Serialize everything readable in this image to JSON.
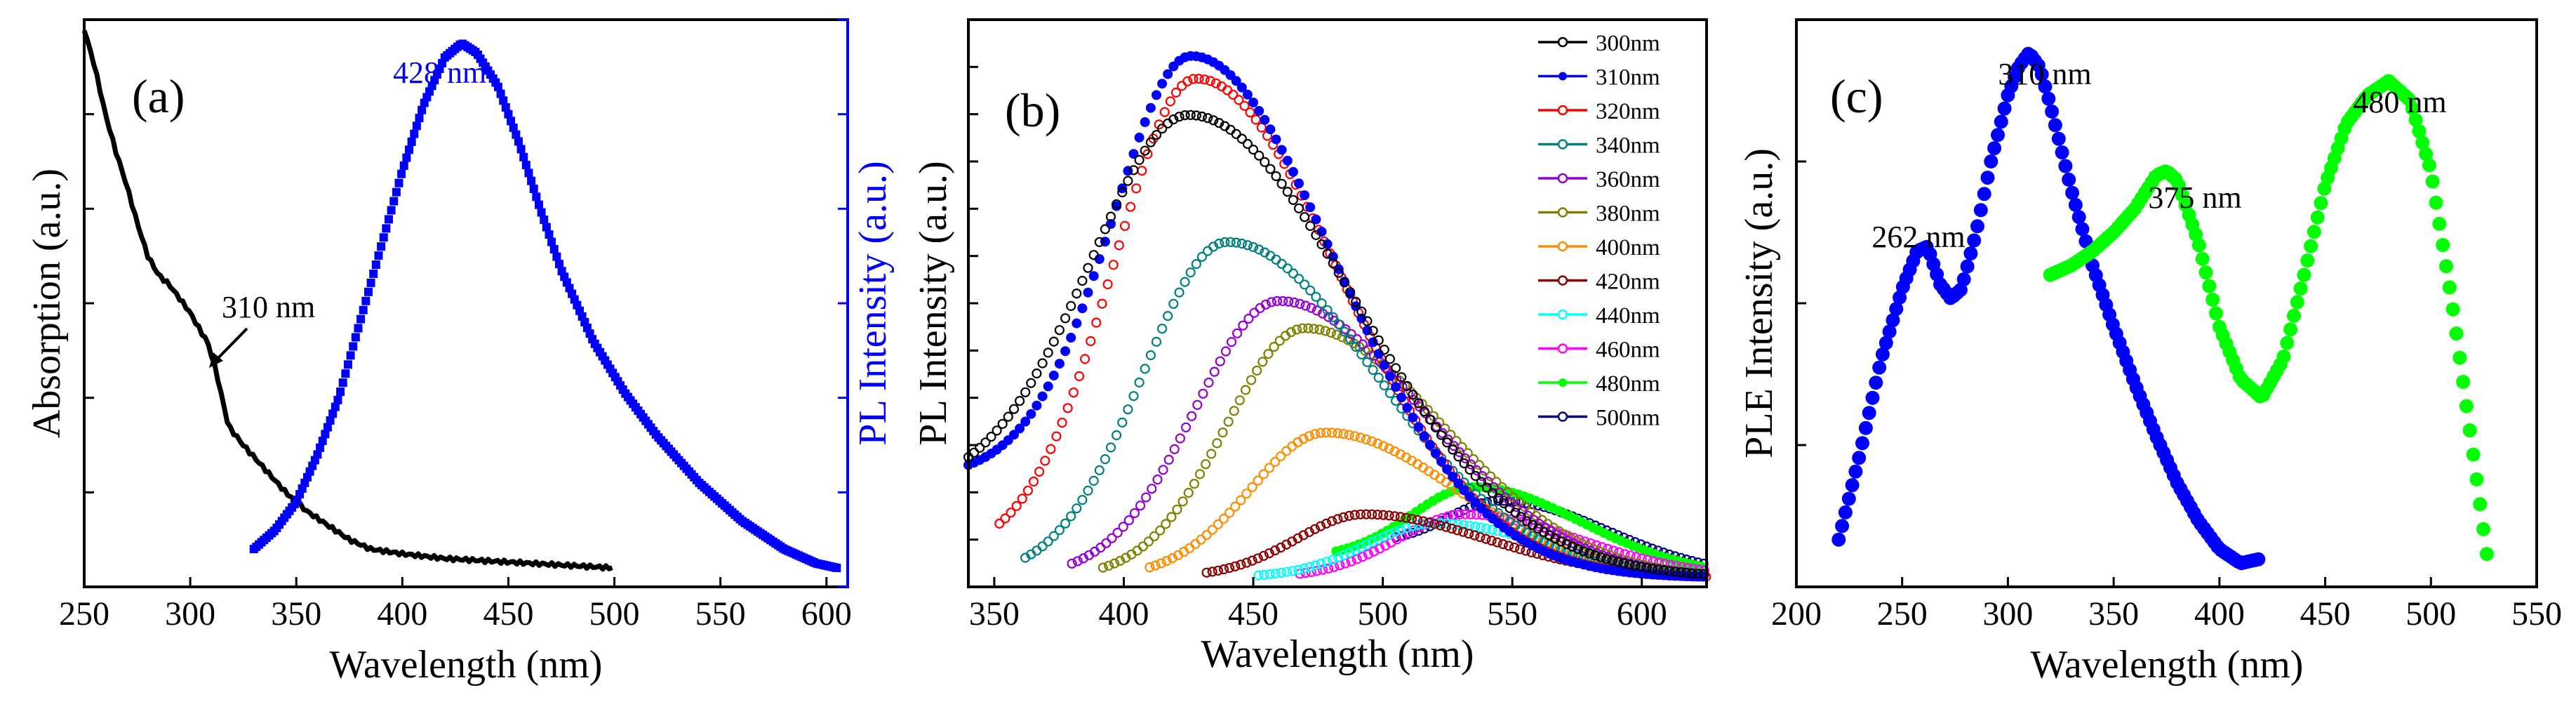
{
  "chart_data": [
    {
      "panel": "(a)",
      "type": "line",
      "xlabel": "Wavelength (nm)",
      "ylabel_left": "Absorption (a.u.)",
      "ylabel_right": "PL Intensity (a.u.)",
      "xlim": [
        250,
        610
      ],
      "xticks": [
        250,
        300,
        350,
        400,
        450,
        500,
        550,
        600
      ],
      "ylim": [
        0,
        1.2
      ],
      "colors": {
        "absorption": "#000000",
        "pl": "#0000ff",
        "right_axis": "#0000ff"
      },
      "annotations": [
        {
          "text": "310 nm",
          "x": 310,
          "series": "absorption"
        },
        {
          "text": "428 nm",
          "x": 428,
          "series": "pl"
        }
      ],
      "series": [
        {
          "name": "Absorption",
          "x": [
            250,
            255,
            260,
            265,
            270,
            275,
            280,
            285,
            290,
            295,
            300,
            305,
            308,
            312,
            315,
            318,
            325,
            335,
            345,
            355,
            365,
            375,
            385,
            400,
            420,
            440,
            460,
            480,
            500
          ],
          "y": [
            1.18,
            1.1,
            1.0,
            0.92,
            0.85,
            0.77,
            0.7,
            0.66,
            0.64,
            0.61,
            0.58,
            0.54,
            0.52,
            0.46,
            0.4,
            0.34,
            0.3,
            0.25,
            0.2,
            0.16,
            0.13,
            0.1,
            0.08,
            0.07,
            0.06,
            0.055,
            0.05,
            0.045,
            0.04
          ]
        },
        {
          "name": "PL",
          "x": [
            330,
            340,
            350,
            360,
            370,
            380,
            390,
            400,
            410,
            420,
            428,
            435,
            445,
            455,
            465,
            475,
            490,
            505,
            520,
            540,
            560,
            580,
            595,
            605
          ],
          "y": [
            0.08,
            0.12,
            0.18,
            0.28,
            0.4,
            0.56,
            0.72,
            0.88,
            1.02,
            1.12,
            1.15,
            1.13,
            1.06,
            0.94,
            0.8,
            0.67,
            0.52,
            0.41,
            0.32,
            0.22,
            0.14,
            0.08,
            0.05,
            0.04
          ]
        }
      ]
    },
    {
      "panel": "(b)",
      "type": "line",
      "xlabel": "Wavelength (nm)",
      "ylabel": "PL Intensity (a.u.)",
      "xlim": [
        340,
        625
      ],
      "xticks": [
        350,
        400,
        450,
        500,
        550,
        600
      ],
      "ylim": [
        0,
        1.25
      ],
      "legend_position": "top-right",
      "series": [
        {
          "name": "300nm",
          "color": "#000000",
          "peak_x": 425,
          "peak_y": 1.04,
          "start_x": 340,
          "start_y": 0.2,
          "end_x": 625,
          "end_y": 0.02,
          "sigma_left": 42,
          "sigma_right": 64
        },
        {
          "name": "310nm",
          "color": "#0000ff",
          "peak_x": 426,
          "peak_y": 1.17,
          "start_x": 340,
          "start_y": 0.24,
          "end_x": 625,
          "end_y": 0.02,
          "sigma_left": 34,
          "sigma_right": 56
        },
        {
          "name": "320nm",
          "color": "#ff0000",
          "peak_x": 428,
          "peak_y": 1.12,
          "start_x": 352,
          "start_y": 0.07,
          "end_x": 625,
          "end_y": 0.02,
          "sigma_left": 33,
          "sigma_right": 56
        },
        {
          "name": "340nm",
          "color": "#008080",
          "peak_x": 440,
          "peak_y": 0.76,
          "start_x": 362,
          "start_y": 0.02,
          "end_x": 625,
          "end_y": 0.02,
          "sigma_left": 33,
          "sigma_right": 58
        },
        {
          "name": "360nm",
          "color": "#9400d3",
          "peak_x": 460,
          "peak_y": 0.63,
          "start_x": 380,
          "start_y": 0.02,
          "end_x": 625,
          "end_y": 0.02,
          "sigma_left": 33,
          "sigma_right": 56
        },
        {
          "name": "380nm",
          "color": "#808000",
          "peak_x": 470,
          "peak_y": 0.57,
          "start_x": 392,
          "start_y": 0.02,
          "end_x": 625,
          "end_y": 0.02,
          "sigma_left": 31,
          "sigma_right": 54
        },
        {
          "name": "400nm",
          "color": "#ff8c00",
          "peak_x": 478,
          "peak_y": 0.34,
          "start_x": 410,
          "start_y": 0.02,
          "end_x": 625,
          "end_y": 0.02,
          "sigma_left": 30,
          "sigma_right": 52
        },
        {
          "name": "420nm",
          "color": "#8b0000",
          "peak_x": 493,
          "peak_y": 0.16,
          "start_x": 432,
          "start_y": 0.02,
          "end_x": 625,
          "end_y": 0.02,
          "sigma_left": 28,
          "sigma_right": 50
        },
        {
          "name": "440nm",
          "color": "#00ffff",
          "peak_x": 520,
          "peak_y": 0.14,
          "start_x": 452,
          "start_y": 0.02,
          "end_x": 625,
          "end_y": 0.02,
          "sigma_left": 28,
          "sigma_right": 48
        },
        {
          "name": "460nm",
          "color": "#ff00ff",
          "peak_x": 532,
          "peak_y": 0.16,
          "start_x": 468,
          "start_y": 0.02,
          "end_x": 625,
          "end_y": 0.02,
          "sigma_left": 28,
          "sigma_right": 46
        },
        {
          "name": "480nm",
          "color": "#00ff00",
          "peak_x": 535,
          "peak_y": 0.22,
          "start_x": 482,
          "start_y": 0.06,
          "end_x": 625,
          "end_y": 0.02,
          "sigma_left": 28,
          "sigma_right": 44
        },
        {
          "name": "500nm",
          "color": "#000080",
          "peak_x": 545,
          "peak_y": 0.19,
          "start_x": 505,
          "start_y": 0.1,
          "end_x": 625,
          "end_y": 0.02,
          "sigma_left": 28,
          "sigma_right": 44
        }
      ]
    },
    {
      "panel": "(c)",
      "type": "scatter",
      "xlabel": "Wavelength (nm)",
      "ylabel": "PLE Intensity (a.u.)",
      "xlim": [
        200,
        550
      ],
      "xticks": [
        200,
        250,
        300,
        350,
        400,
        450,
        500,
        550
      ],
      "ylim": [
        0,
        1.2
      ],
      "annotations": [
        {
          "text": "262 nm",
          "x": 262,
          "series": "blue"
        },
        {
          "text": "310 nm",
          "x": 310,
          "series": "blue"
        },
        {
          "text": "375 nm",
          "x": 375,
          "series": "green"
        },
        {
          "text": "480 nm",
          "x": 480,
          "series": "green"
        }
      ],
      "series": [
        {
          "name": "blue",
          "color": "#0000ff",
          "x": [
            220,
            230,
            240,
            250,
            257,
            262,
            268,
            273,
            278,
            285,
            292,
            300,
            305,
            310,
            315,
            320,
            330,
            340,
            350,
            360,
            370,
            380,
            390,
            400,
            410,
            420
          ],
          "y": [
            0.1,
            0.28,
            0.48,
            0.63,
            0.71,
            0.72,
            0.64,
            0.61,
            0.63,
            0.75,
            0.9,
            1.04,
            1.1,
            1.13,
            1.1,
            1.02,
            0.84,
            0.68,
            0.55,
            0.43,
            0.32,
            0.22,
            0.14,
            0.08,
            0.05,
            0.06
          ]
        },
        {
          "name": "green",
          "color": "#00ff00",
          "x": [
            320,
            330,
            340,
            350,
            360,
            370,
            375,
            380,
            390,
            400,
            410,
            420,
            430,
            440,
            450,
            460,
            470,
            480,
            490,
            500,
            510,
            520,
            527
          ],
          "y": [
            0.66,
            0.68,
            0.71,
            0.75,
            0.8,
            0.87,
            0.88,
            0.86,
            0.73,
            0.55,
            0.44,
            0.4,
            0.48,
            0.66,
            0.85,
            0.98,
            1.04,
            1.07,
            1.03,
            0.88,
            0.6,
            0.28,
            0.05
          ]
        }
      ]
    }
  ]
}
